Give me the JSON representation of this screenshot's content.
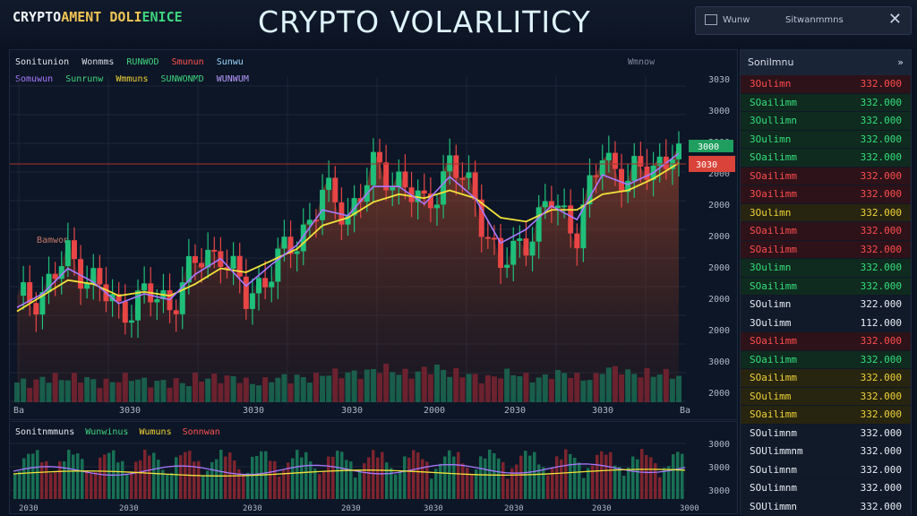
{
  "header": {
    "brand_a": "CRYPTO",
    "brand_b": "AMENT DOLI",
    "brand_c": "ENICE",
    "title": "CRYPTO VOLARLITICY",
    "btn1": "Wunw",
    "btn2": "Sitwanmmns",
    "close": "✕"
  },
  "main_panel": {
    "legend1": "Sonitunion",
    "legend1_b": "Wonmms",
    "legend1_c": "RUNWOD",
    "legend1_d": "Smunun",
    "legend1_e": "Sunwu",
    "legend2": "Somuwun",
    "legend2_b": "Sunrunw",
    "legend2_c": "Wmmuns",
    "legend2_d": "SUNWONMD",
    "legend2_e": "WUNWUM",
    "corner_label": "Wmnow",
    "left_note": "Bamwon",
    "price_axis": [
      "3030",
      "3000",
      "3000",
      "2000",
      "2000",
      "2000",
      "2000",
      "2000",
      "2000",
      "3000",
      "2000"
    ],
    "price_tags": {
      "green": "3000",
      "red": "3030"
    },
    "time_axis": [
      "Ba",
      "3030",
      "3030",
      "3030",
      "2000",
      "2030",
      "3030",
      "Ba"
    ]
  },
  "sub_panel": {
    "legend": "Sonitnmmuns",
    "legend_b": "Wunwinus",
    "legend_c": "Wumuns",
    "legend_d": "Sonnwan",
    "axis": [
      "3000",
      "3000",
      "3000"
    ],
    "time_axis": [
      "2030",
      "2030",
      "2030",
      "2030",
      "3030",
      "2030",
      "2030",
      "3000"
    ]
  },
  "side_panel": {
    "title": "Sonilmnu",
    "icon": "»",
    "rows": [
      {
        "label": "3Oulimn",
        "value": "332.000",
        "color": "r"
      },
      {
        "label": "SOailimm",
        "value": "332.000",
        "color": "g"
      },
      {
        "label": "3Oullimn",
        "value": "332.000",
        "color": "g"
      },
      {
        "label": "3Oulimn",
        "value": "332.000",
        "color": "g"
      },
      {
        "label": "SOailimm",
        "value": "332.000",
        "color": "g"
      },
      {
        "label": "SOailimm",
        "value": "332.000",
        "color": "r"
      },
      {
        "label": "3Oailimm",
        "value": "332.000",
        "color": "r"
      },
      {
        "label": "3Oulimn",
        "value": "332.000",
        "color": "y"
      },
      {
        "label": "SOailimm",
        "value": "332.000",
        "color": "r"
      },
      {
        "label": "SOailimm",
        "value": "332.000",
        "color": "r"
      },
      {
        "label": "3Oulimn",
        "value": "332.000",
        "color": "g"
      },
      {
        "label": "SOailimm",
        "value": "332.000",
        "color": "g"
      },
      {
        "label": "SOulimn",
        "value": "322.000",
        "color": "w"
      },
      {
        "label": "3Oulimm",
        "value": "112.000",
        "color": "w"
      },
      {
        "label": "SOailimm",
        "value": "332.000",
        "color": "r"
      },
      {
        "label": "SOailimm",
        "value": "332.000",
        "color": "g"
      },
      {
        "label": "SOailimm",
        "value": "332.000",
        "color": "y"
      },
      {
        "label": "SOulimm",
        "value": "332.000",
        "color": "y"
      },
      {
        "label": "SOailimm",
        "value": "332.000",
        "color": "y"
      },
      {
        "label": "SOulimnm",
        "value": "332.000",
        "color": "w"
      },
      {
        "label": "SOUlimmnm",
        "value": "332.000",
        "color": "w"
      },
      {
        "label": "SOulimnm",
        "value": "332.000",
        "color": "w"
      },
      {
        "label": "SOulimnm",
        "value": "332.000",
        "color": "w"
      },
      {
        "label": "SOUlimmn",
        "value": "332.000",
        "color": "w"
      }
    ]
  },
  "colors": {
    "up": "#1fbf7a",
    "down": "#e84545",
    "ma_yellow": "#f2e23a",
    "ma_purple": "#a879ff",
    "background": "#0b1221"
  },
  "chart_data": {
    "type": "line",
    "series": [
      {
        "values": [
          2.0,
          2.3,
          3.2,
          2.6,
          1.8,
          2.2,
          2.0,
          3.0,
          3.4,
          2.1,
          2.9,
          3.6,
          4.8,
          4.3,
          5.4,
          5.2,
          4.4,
          5.6,
          4.7,
          2.9,
          3.7,
          4.6,
          3.9,
          5.8,
          5.2,
          5.5,
          6.1
        ]
      },
      {
        "values": [
          1.8,
          2.2,
          2.6,
          2.5,
          2.2,
          2.3,
          2.2,
          2.5,
          2.9,
          2.8,
          3.1,
          3.4,
          4.0,
          4.2,
          4.6,
          4.8,
          4.7,
          4.9,
          4.7,
          4.2,
          4.1,
          4.4,
          4.4,
          4.8,
          4.9,
          5.2,
          5.6
        ]
      }
    ],
    "volume_values": [
      2,
      3,
      3,
      2,
      3,
      2,
      2,
      3,
      3,
      2,
      3,
      3,
      4,
      4,
      5,
      4,
      5,
      4,
      3,
      4,
      3,
      4,
      3,
      5,
      4,
      4,
      3
    ]
  }
}
